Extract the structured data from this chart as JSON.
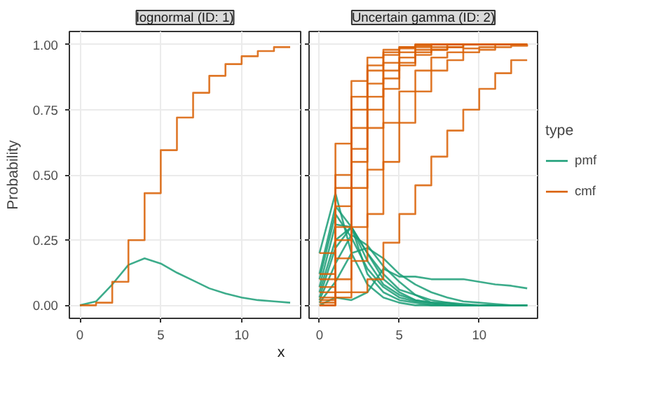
{
  "chart_data": [
    {
      "type": "line",
      "title": "lognormal (ID: 1)",
      "xlabel": "x",
      "ylabel": "Probability",
      "x": [
        0,
        1,
        2,
        3,
        4,
        5,
        6,
        7,
        8,
        9,
        10,
        11,
        12,
        13
      ],
      "xlim": [
        -0.65,
        13.65
      ],
      "ylim": [
        -0.05,
        1.05
      ],
      "xticks": [
        0,
        5,
        10
      ],
      "yticks": [
        {
          "value": 0,
          "label": "0.00"
        },
        {
          "value": 0.25,
          "label": "0.25"
        },
        {
          "value": 0.5,
          "label": "0.50"
        },
        {
          "value": 0.75,
          "label": "0.75"
        },
        {
          "value": 1,
          "label": "1.00"
        }
      ],
      "grid": true,
      "series": [
        {
          "color": "#1b9e77",
          "values": [
            0,
            0.015,
            0.08,
            0.155,
            0.18,
            0.16,
            0.125,
            0.095,
            0.065,
            0.045,
            0.03,
            0.02,
            0.015,
            0.01
          ]
        },
        {
          "type": "step",
          "color": "#d95f02",
          "values": [
            0,
            0.01,
            0.09,
            0.25,
            0.43,
            0.595,
            0.72,
            0.815,
            0.88,
            0.925,
            0.955,
            0.975,
            0.99,
            0.99
          ]
        }
      ]
    },
    {
      "type": "line",
      "title": "Uncertain gamma (ID: 2)",
      "x": [
        0,
        1,
        2,
        3,
        4,
        5,
        6,
        7,
        8,
        9,
        10,
        11,
        12,
        13
      ],
      "xlim": [
        -0.65,
        13.65
      ],
      "ylim": [
        -0.05,
        1.05
      ],
      "xticks": [
        0,
        5,
        10
      ],
      "yticks": [
        0,
        0.25,
        0.5,
        0.75,
        1
      ],
      "tick_labels": "x",
      "grid": true,
      "legend": "right",
      "legend_title": "type",
      "series": [
        {
          "name": "pmf",
          "color": "#1b9e77",
          "values": [
            0.2,
            0.43,
            0.2,
            0.08,
            0.03,
            0.01,
            0,
            0,
            0,
            0,
            0,
            0,
            0,
            0
          ]
        },
        {
          "type": "line",
          "color": "#1b9e77",
          "values": [
            0.1,
            0.35,
            0.26,
            0.14,
            0.07,
            0.03,
            0.015,
            0.005,
            0,
            0,
            0,
            0,
            0,
            0
          ]
        },
        {
          "type": "line",
          "color": "#1b9e77",
          "values": [
            0.05,
            0.25,
            0.3,
            0.2,
            0.1,
            0.05,
            0.02,
            0.01,
            0.005,
            0,
            0,
            0,
            0,
            0
          ]
        },
        {
          "type": "line",
          "color": "#1b9e77",
          "values": [
            0.02,
            0.16,
            0.27,
            0.23,
            0.15,
            0.09,
            0.04,
            0.02,
            0.01,
            0.005,
            0,
            0,
            0,
            0
          ]
        },
        {
          "type": "line",
          "color": "#1b9e77",
          "values": [
            0.01,
            0.09,
            0.2,
            0.22,
            0.18,
            0.12,
            0.08,
            0.05,
            0.03,
            0.015,
            0.01,
            0.005,
            0,
            0
          ]
        },
        {
          "type": "line",
          "color": "#1b9e77",
          "values": [
            0.12,
            0.38,
            0.3,
            0.12,
            0.05,
            0.02,
            0.01,
            0,
            0,
            0,
            0,
            0,
            0,
            0
          ]
        },
        {
          "type": "line",
          "color": "#1b9e77",
          "values": [
            0.07,
            0.31,
            0.3,
            0.17,
            0.08,
            0.04,
            0.02,
            0.01,
            0,
            0,
            0,
            0,
            0,
            0
          ]
        },
        {
          "type": "line",
          "color": "#1b9e77",
          "values": [
            0.03,
            0.22,
            0.3,
            0.2,
            0.12,
            0.06,
            0.04,
            0.01,
            0.01,
            0,
            0,
            0,
            0,
            0
          ]
        },
        {
          "type": "line",
          "color": "#1b9e77",
          "values": [
            0,
            0.03,
            0.02,
            0.05,
            0.14,
            0.11,
            0.11,
            0.1,
            0.1,
            0.1,
            0.09,
            0.08,
            0.075,
            0.065
          ]
        },
        {
          "type": "step",
          "name": "cmf",
          "color": "#d95f02",
          "values": [
            0.2,
            0.62,
            0.86,
            0.95,
            0.98,
            0.99,
            1,
            1,
            1,
            1,
            1,
            1,
            1,
            1
          ]
        },
        {
          "type": "step",
          "color": "#d95f02",
          "values": [
            0.1,
            0.45,
            0.75,
            0.9,
            0.96,
            0.985,
            0.995,
            1,
            1,
            1,
            1,
            1,
            1,
            1
          ]
        },
        {
          "type": "step",
          "color": "#d95f02",
          "values": [
            0.05,
            0.3,
            0.6,
            0.8,
            0.9,
            0.95,
            0.98,
            0.99,
            1,
            1,
            1,
            1,
            1,
            1
          ]
        },
        {
          "type": "step",
          "color": "#d95f02",
          "values": [
            0.02,
            0.18,
            0.45,
            0.68,
            0.83,
            0.92,
            0.96,
            0.98,
            0.99,
            1,
            1,
            1,
            1,
            1
          ]
        },
        {
          "type": "step",
          "color": "#d95f02",
          "values": [
            0.01,
            0.1,
            0.3,
            0.52,
            0.7,
            0.82,
            0.9,
            0.95,
            0.97,
            0.985,
            0.99,
            1,
            1,
            1
          ]
        },
        {
          "type": "step",
          "color": "#d95f02",
          "values": [
            0,
            0.05,
            0.17,
            0.35,
            0.55,
            0.7,
            0.82,
            0.9,
            0.94,
            0.97,
            0.98,
            0.99,
            0.995,
            1
          ]
        },
        {
          "type": "step",
          "color": "#d95f02",
          "values": [
            0.12,
            0.5,
            0.8,
            0.92,
            0.97,
            0.99,
            1,
            1,
            1,
            1,
            1,
            1,
            1,
            1
          ]
        },
        {
          "type": "step",
          "color": "#d95f02",
          "values": [
            0.07,
            0.38,
            0.68,
            0.85,
            0.93,
            0.97,
            0.99,
            1,
            1,
            1,
            1,
            1,
            1,
            1
          ]
        },
        {
          "type": "step",
          "color": "#d95f02",
          "values": [
            0.03,
            0.25,
            0.55,
            0.75,
            0.87,
            0.93,
            0.97,
            0.98,
            0.99,
            1,
            1,
            1,
            1,
            1
          ]
        },
        {
          "type": "step",
          "color": "#d95f02",
          "values": [
            0,
            0.03,
            0.05,
            0.1,
            0.24,
            0.35,
            0.46,
            0.57,
            0.67,
            0.75,
            0.83,
            0.89,
            0.94,
            0.94
          ]
        }
      ]
    }
  ]
}
